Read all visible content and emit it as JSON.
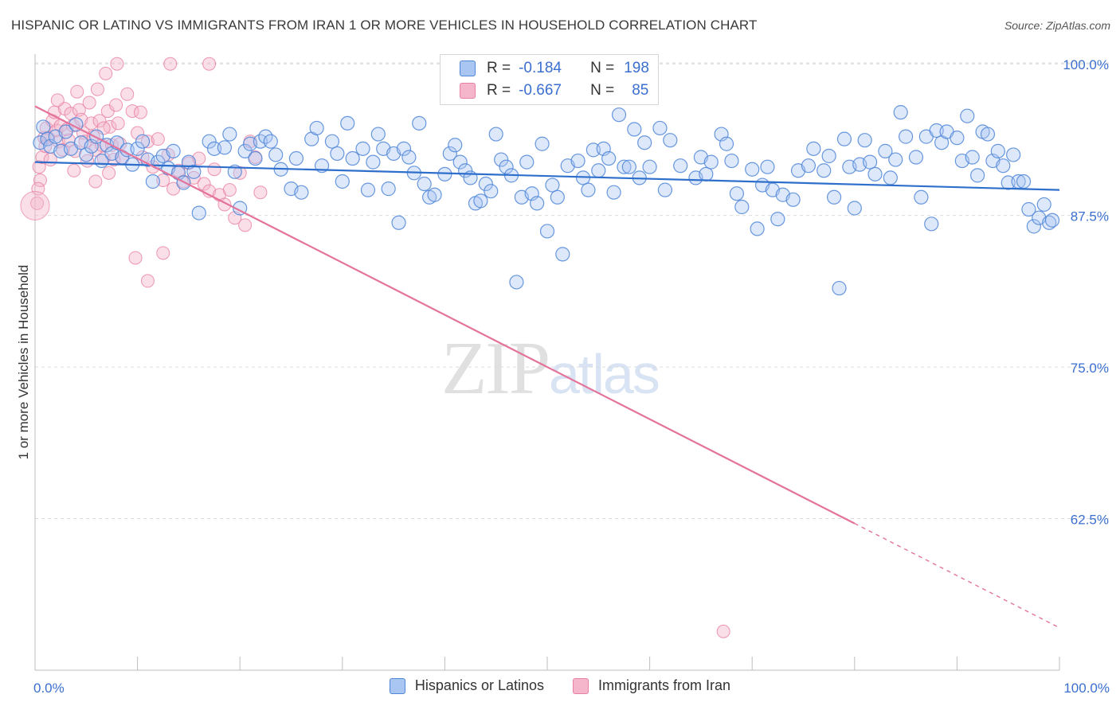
{
  "header": {
    "title": "HISPANIC OR LATINO VS IMMIGRANTS FROM IRAN 1 OR MORE VEHICLES IN HOUSEHOLD CORRELATION CHART",
    "source": "Source: ZipAtlas.com"
  },
  "watermark": {
    "zip": "ZIP",
    "atlas": "atlas"
  },
  "legend": {
    "rows": [
      {
        "r_label": "R =",
        "r_value": "-0.184",
        "n_label": "N =",
        "n_value": "198"
      },
      {
        "r_label": "R =",
        "r_value": "-0.667",
        "n_label": "N =",
        "n_value": "85"
      }
    ]
  },
  "colors": {
    "blue_fill": "#a9c6f2",
    "blue_stroke": "#4f86d8",
    "blue_line": "#2f6fcc",
    "pink_fill": "#f5b6cc",
    "pink_stroke": "#e8809f",
    "pink_line": "#e4739b",
    "grid": "#dcdcdc",
    "tick_label": "#3b6fcf"
  },
  "chart_data": {
    "type": "scatter",
    "title": "HISPANIC OR LATINO VS IMMIGRANTS FROM IRAN 1 OR MORE VEHICLES IN HOUSEHOLD CORRELATION CHART",
    "xlabel": "",
    "ylabel": "1 or more Vehicles in Household",
    "xlim": [
      0,
      100
    ],
    "ylim": [
      50,
      100.8
    ],
    "x_tick_labels": [
      "0.0%",
      "100.0%"
    ],
    "y_ticks": [
      62.5,
      75.0,
      87.5,
      100.0
    ],
    "y_tick_labels": [
      "62.5%",
      "75.0%",
      "87.5%",
      "100.0%"
    ],
    "grid": true,
    "legend_position": "bottom",
    "series": [
      {
        "name": "Hispanics or Latinos",
        "trend": {
          "x0": 0,
          "y0": 91.9,
          "x1": 100,
          "y1": 89.6,
          "dashed_from": null
        },
        "points": [
          [
            0.5,
            93.5
          ],
          [
            0.8,
            94.8
          ],
          [
            1.2,
            93.8
          ],
          [
            1.5,
            93.2
          ],
          [
            2.0,
            94.0
          ],
          [
            2.5,
            92.8
          ],
          [
            3.0,
            94.4
          ],
          [
            3.5,
            93.0
          ],
          [
            4.0,
            95.0
          ],
          [
            4.5,
            93.5
          ],
          [
            5.0,
            92.5
          ],
          [
            5.5,
            93.2
          ],
          [
            6.0,
            94.0
          ],
          [
            6.5,
            92.0
          ],
          [
            7.0,
            93.3
          ],
          [
            7.5,
            92.6
          ],
          [
            8.0,
            93.5
          ],
          [
            8.5,
            92.3
          ],
          [
            9.0,
            92.9
          ],
          [
            9.5,
            91.7
          ],
          [
            10.0,
            93.0
          ],
          [
            10.5,
            93.6
          ],
          [
            11.0,
            92.1
          ],
          [
            11.5,
            90.3
          ],
          [
            12.0,
            91.9
          ],
          [
            12.5,
            92.4
          ],
          [
            13.0,
            91.4
          ],
          [
            13.5,
            92.8
          ],
          [
            14.0,
            91.0
          ],
          [
            14.5,
            90.2
          ],
          [
            15.0,
            91.9
          ],
          [
            15.5,
            91.1
          ],
          [
            16.0,
            87.7
          ],
          [
            17.0,
            93.6
          ],
          [
            17.5,
            93.0
          ],
          [
            18.5,
            93.1
          ],
          [
            19.0,
            94.2
          ],
          [
            19.5,
            91.1
          ],
          [
            20.0,
            88.1
          ],
          [
            20.5,
            92.8
          ],
          [
            21.0,
            93.4
          ],
          [
            21.5,
            92.2
          ],
          [
            22.0,
            93.6
          ],
          [
            22.5,
            94.0
          ],
          [
            23.0,
            93.6
          ],
          [
            23.5,
            92.5
          ],
          [
            24.0,
            91.3
          ],
          [
            25.0,
            89.7
          ],
          [
            25.5,
            92.2
          ],
          [
            26.0,
            89.4
          ],
          [
            27.0,
            93.8
          ],
          [
            27.5,
            94.7
          ],
          [
            28.0,
            91.6
          ],
          [
            29.0,
            93.6
          ],
          [
            29.5,
            92.6
          ],
          [
            30.0,
            90.3
          ],
          [
            30.5,
            95.1
          ],
          [
            31.0,
            92.2
          ],
          [
            32.0,
            93.0
          ],
          [
            32.5,
            89.6
          ],
          [
            33.0,
            91.9
          ],
          [
            33.5,
            94.2
          ],
          [
            34.0,
            93.0
          ],
          [
            34.5,
            89.7
          ],
          [
            35.0,
            92.6
          ],
          [
            35.5,
            86.9
          ],
          [
            36.0,
            93.0
          ],
          [
            36.5,
            92.3
          ],
          [
            37.0,
            91.0
          ],
          [
            37.5,
            95.1
          ],
          [
            38.0,
            90.1
          ],
          [
            38.5,
            89.0
          ],
          [
            39.0,
            89.2
          ],
          [
            40.0,
            90.9
          ],
          [
            40.5,
            92.6
          ],
          [
            41.0,
            93.3
          ],
          [
            41.5,
            91.9
          ],
          [
            42.0,
            91.2
          ],
          [
            42.5,
            90.6
          ],
          [
            43.0,
            88.5
          ],
          [
            43.5,
            88.7
          ],
          [
            44.0,
            90.1
          ],
          [
            44.5,
            89.5
          ],
          [
            45.0,
            94.2
          ],
          [
            45.5,
            92.1
          ],
          [
            46.0,
            91.5
          ],
          [
            46.5,
            90.8
          ],
          [
            47.0,
            82.0
          ],
          [
            47.5,
            89.0
          ],
          [
            48.0,
            91.9
          ],
          [
            48.5,
            89.3
          ],
          [
            49.0,
            88.5
          ],
          [
            49.5,
            93.4
          ],
          [
            50.0,
            86.2
          ],
          [
            50.5,
            90.0
          ],
          [
            51.0,
            89.0
          ],
          [
            51.5,
            84.3
          ],
          [
            52.0,
            91.6
          ],
          [
            53.0,
            92.0
          ],
          [
            53.5,
            90.6
          ],
          [
            54.0,
            89.6
          ],
          [
            54.5,
            92.9
          ],
          [
            55.0,
            91.2
          ],
          [
            55.5,
            93.0
          ],
          [
            56.0,
            92.2
          ],
          [
            56.5,
            89.4
          ],
          [
            57.0,
            95.8
          ],
          [
            57.5,
            91.5
          ],
          [
            58.0,
            91.5
          ],
          [
            58.5,
            94.6
          ],
          [
            59.0,
            90.6
          ],
          [
            59.5,
            93.5
          ],
          [
            60.0,
            91.5
          ],
          [
            61.0,
            94.7
          ],
          [
            61.5,
            89.6
          ],
          [
            62.0,
            93.7
          ],
          [
            63.0,
            91.6
          ],
          [
            64.5,
            90.6
          ],
          [
            65.0,
            92.3
          ],
          [
            65.5,
            90.9
          ],
          [
            66.0,
            91.9
          ],
          [
            67.0,
            94.2
          ],
          [
            67.5,
            93.4
          ],
          [
            68.0,
            92.0
          ],
          [
            68.5,
            89.3
          ],
          [
            69.0,
            88.2
          ],
          [
            70.0,
            91.3
          ],
          [
            70.5,
            86.4
          ],
          [
            71.0,
            90.0
          ],
          [
            71.5,
            91.5
          ],
          [
            72.0,
            89.6
          ],
          [
            72.5,
            87.2
          ],
          [
            73.0,
            89.2
          ],
          [
            74.0,
            88.8
          ],
          [
            74.5,
            91.2
          ],
          [
            75.5,
            91.6
          ],
          [
            76.0,
            93.0
          ],
          [
            77.0,
            91.2
          ],
          [
            77.5,
            92.4
          ],
          [
            78.0,
            89.0
          ],
          [
            78.5,
            81.5
          ],
          [
            79.0,
            93.8
          ],
          [
            79.5,
            91.5
          ],
          [
            80.0,
            88.1
          ],
          [
            80.5,
            91.7
          ],
          [
            81.0,
            93.7
          ],
          [
            81.5,
            91.9
          ],
          [
            82.0,
            90.9
          ],
          [
            83.0,
            92.8
          ],
          [
            83.5,
            90.6
          ],
          [
            84.0,
            92.1
          ],
          [
            84.5,
            96.0
          ],
          [
            85.0,
            94.0
          ],
          [
            86.0,
            92.3
          ],
          [
            86.5,
            89.0
          ],
          [
            87.0,
            94.0
          ],
          [
            87.5,
            86.8
          ],
          [
            88.0,
            94.5
          ],
          [
            88.5,
            93.5
          ],
          [
            89.0,
            94.4
          ],
          [
            90.0,
            93.9
          ],
          [
            90.5,
            92.0
          ],
          [
            91.0,
            95.7
          ],
          [
            91.5,
            92.3
          ],
          [
            92.0,
            90.8
          ],
          [
            92.5,
            94.4
          ],
          [
            93.0,
            94.2
          ],
          [
            93.5,
            92.0
          ],
          [
            94.0,
            92.8
          ],
          [
            94.5,
            91.6
          ],
          [
            95.0,
            90.2
          ],
          [
            95.5,
            92.5
          ],
          [
            96.0,
            90.3
          ],
          [
            96.5,
            90.3
          ],
          [
            97.0,
            88.0
          ],
          [
            97.5,
            86.6
          ],
          [
            98.0,
            87.3
          ],
          [
            98.5,
            88.4
          ],
          [
            99.0,
            86.9
          ],
          [
            99.3,
            87.1
          ]
        ]
      },
      {
        "name": "Immigrants from Iran",
        "trend": {
          "x0": 0,
          "y0": 96.5,
          "x1": 100,
          "y1": 53.5,
          "dashed_from": 80
        },
        "points": [
          [
            0.2,
            88.5
          ],
          [
            0.4,
            91.5
          ],
          [
            0.5,
            90.4
          ],
          [
            0.7,
            92.3
          ],
          [
            0.9,
            93.9
          ],
          [
            1.1,
            94.7
          ],
          [
            1.3,
            93.9
          ],
          [
            1.5,
            92.1
          ],
          [
            1.7,
            95.3
          ],
          [
            1.9,
            96.0
          ],
          [
            2.1,
            94.5
          ],
          [
            2.3,
            93.6
          ],
          [
            2.5,
            94.9
          ],
          [
            2.7,
            92.9
          ],
          [
            2.9,
            96.3
          ],
          [
            3.1,
            94.6
          ],
          [
            3.3,
            93.7
          ],
          [
            3.5,
            95.9
          ],
          [
            3.7,
            94.9
          ],
          [
            3.9,
            92.8
          ],
          [
            4.1,
            97.7
          ],
          [
            4.3,
            96.2
          ],
          [
            4.5,
            95.4
          ],
          [
            4.7,
            94.3
          ],
          [
            4.9,
            93.6
          ],
          [
            5.1,
            92.0
          ],
          [
            5.3,
            96.8
          ],
          [
            5.5,
            95.1
          ],
          [
            5.7,
            94.0
          ],
          [
            5.9,
            92.9
          ],
          [
            6.1,
            97.9
          ],
          [
            6.3,
            95.3
          ],
          [
            6.5,
            93.3
          ],
          [
            6.7,
            92.2
          ],
          [
            6.9,
            99.2
          ],
          [
            7.1,
            96.1
          ],
          [
            7.3,
            94.8
          ],
          [
            7.5,
            93.3
          ],
          [
            7.7,
            92.1
          ],
          [
            7.9,
            96.6
          ],
          [
            8.1,
            95.1
          ],
          [
            8.3,
            93.4
          ],
          [
            8.5,
            92.2
          ],
          [
            9.0,
            97.5
          ],
          [
            9.5,
            96.1
          ],
          [
            10.0,
            94.3
          ],
          [
            10.5,
            92.3
          ],
          [
            11.0,
            93.6
          ],
          [
            11.5,
            91.5
          ],
          [
            12.0,
            93.8
          ],
          [
            12.5,
            90.4
          ],
          [
            13.0,
            92.5
          ],
          [
            13.5,
            89.7
          ],
          [
            14.0,
            91.2
          ],
          [
            14.5,
            90.3
          ],
          [
            15.0,
            91.8
          ],
          [
            15.5,
            90.6
          ],
          [
            16.0,
            92.2
          ],
          [
            16.5,
            90.1
          ],
          [
            17.0,
            89.5
          ],
          [
            17.5,
            91.3
          ],
          [
            18.0,
            89.2
          ],
          [
            18.5,
            88.4
          ],
          [
            19.0,
            89.6
          ],
          [
            19.5,
            87.3
          ],
          [
            20.0,
            91.0
          ],
          [
            20.5,
            86.7
          ],
          [
            21.0,
            93.6
          ],
          [
            21.5,
            92.3
          ],
          [
            22.0,
            89.4
          ],
          [
            9.8,
            84.0
          ],
          [
            11.0,
            82.1
          ],
          [
            12.5,
            84.4
          ],
          [
            13.2,
            100.0
          ],
          [
            8.0,
            100.0
          ],
          [
            17.0,
            100.0
          ],
          [
            7.2,
            91.0
          ],
          [
            3.8,
            91.2
          ],
          [
            5.9,
            90.3
          ],
          [
            0.3,
            89.7
          ],
          [
            1.0,
            93.2
          ],
          [
            2.2,
            97.0
          ],
          [
            6.7,
            94.7
          ],
          [
            10.3,
            96.0
          ],
          [
            67.2,
            53.2
          ]
        ]
      }
    ]
  },
  "bottom_legend": {
    "items": [
      {
        "label": "Hispanics or Latinos"
      },
      {
        "label": "Immigrants from Iran"
      }
    ]
  }
}
